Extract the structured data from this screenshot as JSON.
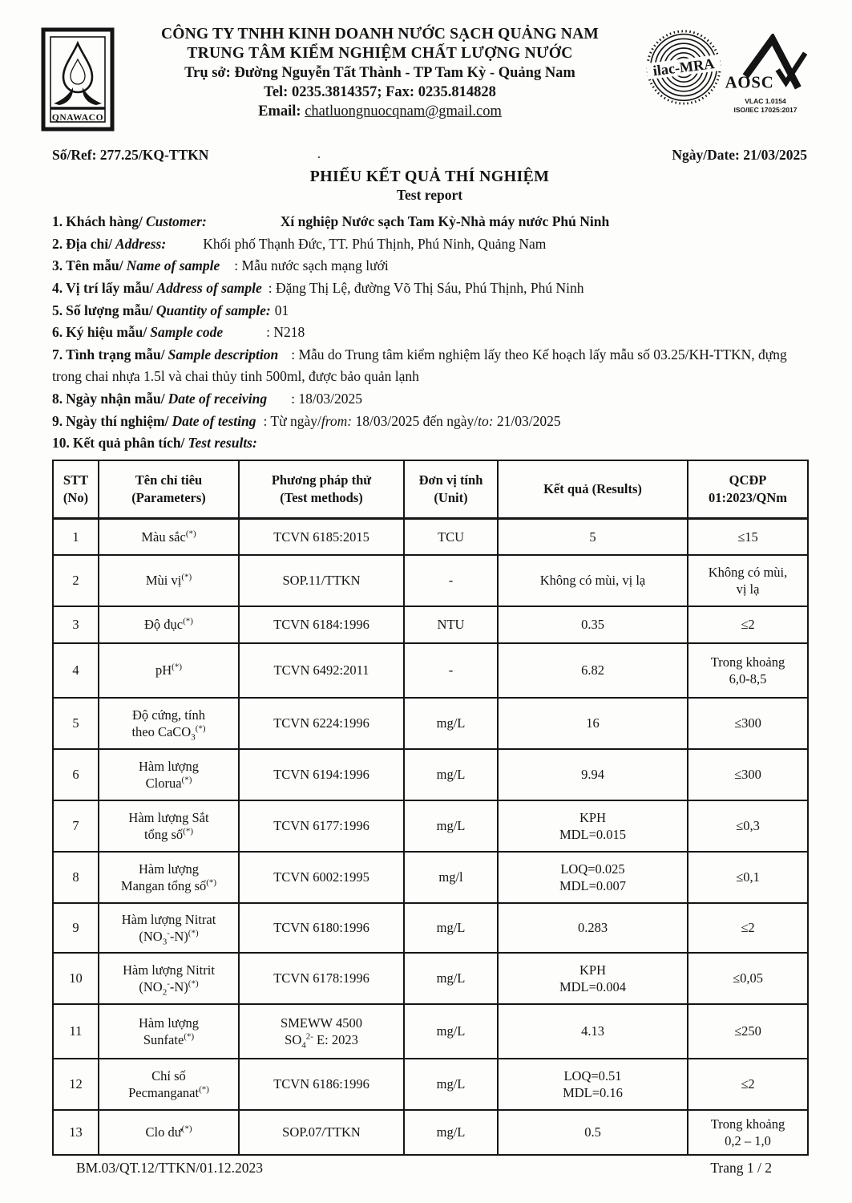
{
  "header": {
    "logo_text": "QNAWACO",
    "company_line1": "CÔNG TY TNHH KINH DOANH NƯỚC SẠCH QUẢNG NAM",
    "company_line2": "TRUNG TÂM KIỂM NGHIỆM CHẤT LƯỢNG NƯỚC",
    "address": "Trụ sở: Đường Nguyễn Tất Thành - TP Tam Kỳ -  Quảng Nam",
    "telfax": "Tel: 0235.3814357; Fax: 0235.814828",
    "email_label": "Email:",
    "email": "chatluongnuocqnam@gmail.com",
    "ilac_text": "ilac-MRA",
    "aosc_text": "AOSC",
    "aosc_sub1": "VLAC 1.0154",
    "aosc_sub2": "ISO/IEC 17025:2017"
  },
  "meta": {
    "ref": "Số/Ref: 277.25/KQ-TTKN",
    "date": "Ngày/Date: 21/03/2025",
    "dot": ".",
    "title": "PHIẾU KẾT QUẢ THÍ NGHIỆM",
    "subtitle": "Test report"
  },
  "info": [
    {
      "num": "1.",
      "vi": "Khách hàng/",
      "en": "Customer:",
      "value": "Xí nghiệp Nước sạch Tam Kỳ-Nhà máy nước Phú Ninh"
    },
    {
      "num": "2.",
      "vi": "Địa chỉ/",
      "en": "Address:",
      "value": "Khối phố Thạnh Đức, TT. Phú Thịnh, Phú Ninh, Quảng Nam"
    },
    {
      "num": "3.",
      "vi": "Tên mẫu/",
      "en": "Name of sample",
      "value": ": Mẫu nước sạch mạng lưới"
    },
    {
      "num": "4.",
      "vi": "Vị trí lấy mẫu/",
      "en": "Address of sample",
      "value": ": Đặng Thị Lệ, đường Võ Thị Sáu, Phú Thịnh, Phú Ninh"
    },
    {
      "num": "5.",
      "vi": "Số lượng mẫu/",
      "en": "Quantity of sample:",
      "value": "01"
    },
    {
      "num": "6.",
      "vi": "Ký hiệu mẫu/",
      "en": "Sample code",
      "value": ": N218"
    },
    {
      "num": "7.",
      "vi": "Tình trạng mẫu/",
      "en": "Sample description",
      "value": ": Mẫu do Trung tâm kiểm nghiệm lấy theo Kế hoạch lấy mẫu số 03.25/KH-TTKN, đựng trong chai nhựa 1.5l và chai thủy tinh 500ml, được bảo quản lạnh"
    },
    {
      "num": "8.",
      "vi": "Ngày nhận mẫu/",
      "en": "Date of receiving",
      "value": ": 18/03/2025"
    },
    {
      "num": "9.",
      "vi": "Ngày thí nghiệm/",
      "en": "Date of testing",
      "value": ": Từ ngày/_from:_ 18/03/2025  đến ngày/_to:_ 21/03/2025"
    },
    {
      "num": "10.",
      "vi": "Kết quả phân tích/",
      "en": "Test results:",
      "value": ""
    }
  ],
  "table": {
    "headers": {
      "no": "STT\n(No)",
      "param": "Tên chỉ tiêu\n(Parameters)",
      "method": "Phương pháp thử\n(Test methods)",
      "unit": "Đơn vị tính\n(Unit)",
      "result": "Kết quả (Results)",
      "limit": "QCĐP\n01:2023/QNm"
    },
    "rows": [
      {
        "no": "1",
        "param": "Màu sắc^(*)^",
        "method": "TCVN 6185:2015",
        "unit": "TCU",
        "result": "5",
        "limit": "≤15"
      },
      {
        "no": "2",
        "param": "Mùi vị^(*)^",
        "method": "SOP.11/TTKN",
        "unit": "-",
        "result": "Không có mùi, vị lạ",
        "limit": "Không có mùi,\nvị lạ"
      },
      {
        "no": "3",
        "param": "Độ đục^(*)^",
        "method": "TCVN 6184:1996",
        "unit": "NTU",
        "result": "0.35",
        "limit": "≤2"
      },
      {
        "no": "4",
        "param": "pH^(*)^",
        "method": "TCVN 6492:2011",
        "unit": "-",
        "result": "6.82",
        "limit": "Trong khoảng\n6,0-8,5"
      },
      {
        "no": "5",
        "param": "Độ cứng, tính\ntheo CaCO~3~^(*)^",
        "method": "TCVN 6224:1996",
        "unit": "mg/L",
        "result": "16",
        "limit": "≤300"
      },
      {
        "no": "6",
        "param": "Hàm lượng\nClorua^(*)^",
        "method": "TCVN 6194:1996",
        "unit": "mg/L",
        "result": "9.94",
        "limit": "≤300"
      },
      {
        "no": "7",
        "param": "Hàm lượng Sắt\ntổng số^(*)^",
        "method": "TCVN 6177:1996",
        "unit": "mg/L",
        "result": "KPH\nMDL=0.015",
        "limit": "≤0,3"
      },
      {
        "no": "8",
        "param": "Hàm lượng\nMangan tổng số^(*)^",
        "method": "TCVN 6002:1995",
        "unit": "mg/l",
        "result": "LOQ=0.025\nMDL=0.007",
        "limit": "≤0,1"
      },
      {
        "no": "9",
        "param": "Hàm lượng Nitrat\n(NO~3~^-^-N)^(*)^",
        "method": "TCVN 6180:1996",
        "unit": "mg/L",
        "result": "0.283",
        "limit": "≤2"
      },
      {
        "no": "10",
        "param": "Hàm lượng Nitrit\n(NO~2~^-^-N)^(*)^",
        "method": "TCVN 6178:1996",
        "unit": "mg/L",
        "result": "KPH\nMDL=0.004",
        "limit": "≤0,05"
      },
      {
        "no": "11",
        "param": "Hàm lượng\nSunfate^(*)^",
        "method": "SMEWW 4500\nSO~4~^2-^ E: 2023",
        "unit": "mg/L",
        "result": "4.13",
        "limit": "≤250"
      },
      {
        "no": "12",
        "param": "Chỉ số\nPecmanganat^(*)^",
        "method": "TCVN 6186:1996",
        "unit": "mg/L",
        "result": "LOQ=0.51\nMDL=0.16",
        "limit": "≤2"
      },
      {
        "no": "13",
        "param": "Clo dư^(*)^",
        "method": "SOP.07/TTKN",
        "unit": "mg/L",
        "result": "0.5",
        "limit": "Trong khoảng\n0,2 – 1,0"
      }
    ]
  },
  "footer": {
    "left": "BM.03/QT.12/TTKN/01.12.2023",
    "right": "Trang 1 / 2"
  }
}
